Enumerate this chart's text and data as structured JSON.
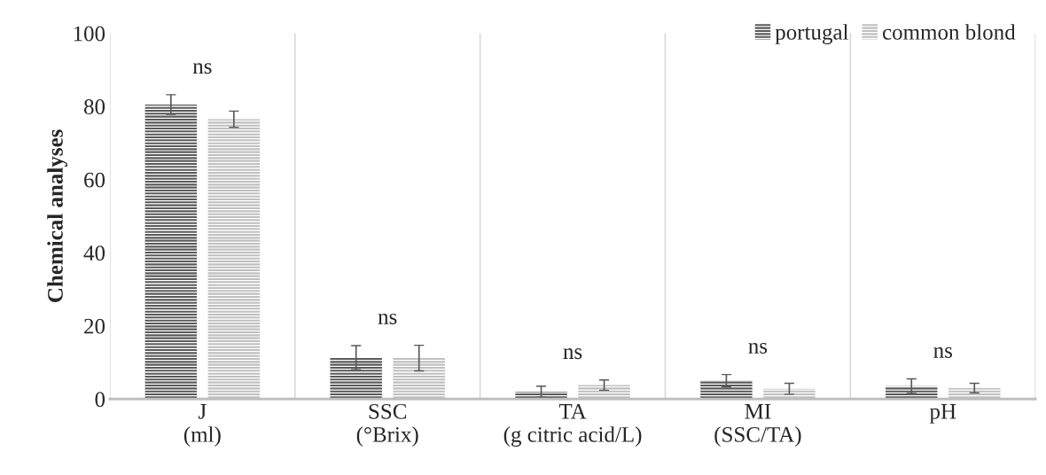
{
  "chart_data": {
    "type": "bar",
    "ylabel": "Chemical analyses",
    "categories": [
      "J\n(ml)",
      "SSC\n(°Brix)",
      "TA\n(g citric acid/L)",
      "MI\n(SSC/TA)",
      "pH"
    ],
    "series": [
      {
        "name": "portugal",
        "color": "#595959",
        "values": [
          80.5,
          11.3,
          2.0,
          5.0,
          3.5
        ],
        "errors": [
          2.7,
          3.3,
          1.5,
          1.7,
          2.0
        ]
      },
      {
        "name": "common blond",
        "color": "#bfbfbf",
        "values": [
          76.5,
          11.2,
          3.8,
          2.8,
          3.0
        ],
        "errors": [
          2.2,
          3.5,
          1.4,
          1.5,
          1.3
        ]
      }
    ],
    "annotations": [
      "ns",
      "ns",
      "ns",
      "ns",
      "ns"
    ],
    "ylim": [
      0,
      100
    ],
    "yticks": [
      0,
      20,
      40,
      60,
      80,
      100
    ],
    "grid": "x",
    "legend": "top right"
  }
}
